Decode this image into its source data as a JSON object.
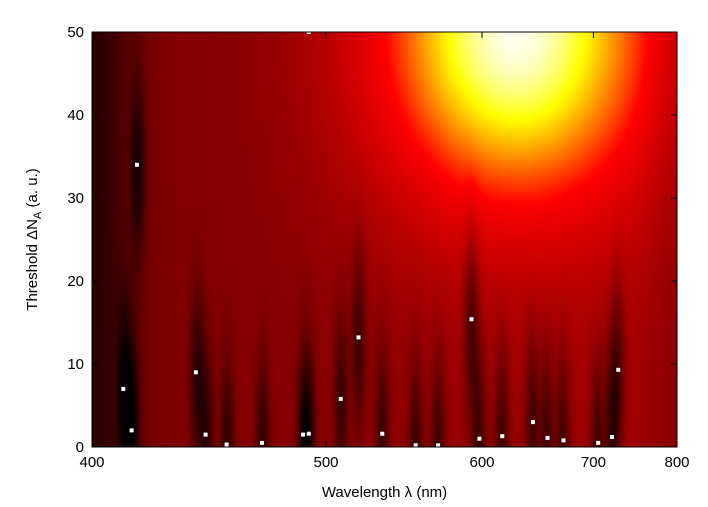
{
  "chart_data": {
    "type": "heatmap",
    "title": "",
    "xlabel": "Wavelength λ (nm)",
    "ylabel_prefix": "Threshold ΔN",
    "ylabel_subscript": "A",
    "ylabel_suffix": " (a. u.)",
    "x_scale": "reciprocal",
    "xlim": [
      400,
      800
    ],
    "ylim": [
      0,
      50
    ],
    "x_ticks": [
      "400",
      "500",
      "600",
      "700",
      "800"
    ],
    "y_ticks": [
      "0",
      "10",
      "20",
      "30",
      "40",
      "50"
    ],
    "grid": false,
    "colormap": [
      "#000000",
      "#8b0000",
      "#ff0000",
      "#ffff00",
      "#ffffff"
    ],
    "points": [
      {
        "x": 411,
        "y": 7.0
      },
      {
        "x": 414,
        "y": 2.0
      },
      {
        "x": 416,
        "y": 34.0
      },
      {
        "x": 439,
        "y": 9.0
      },
      {
        "x": 443,
        "y": 1.5
      },
      {
        "x": 452,
        "y": 0.3
      },
      {
        "x": 468,
        "y": 0.5
      },
      {
        "x": 488,
        "y": 1.5
      },
      {
        "x": 491,
        "y": 1.6
      },
      {
        "x": 491,
        "y": 50.0
      },
      {
        "x": 508,
        "y": 5.8
      },
      {
        "x": 518,
        "y": 13.2
      },
      {
        "x": 532,
        "y": 1.6
      },
      {
        "x": 553,
        "y": 0.2
      },
      {
        "x": 568,
        "y": 0.2
      },
      {
        "x": 592,
        "y": 15.4
      },
      {
        "x": 598,
        "y": 1.0
      },
      {
        "x": 616,
        "y": 1.3
      },
      {
        "x": 642,
        "y": 3.0
      },
      {
        "x": 655,
        "y": 1.1
      },
      {
        "x": 670,
        "y": 0.8
      },
      {
        "x": 705,
        "y": 0.5
      },
      {
        "x": 720,
        "y": 1.2
      },
      {
        "x": 727,
        "y": 9.3
      }
    ]
  }
}
